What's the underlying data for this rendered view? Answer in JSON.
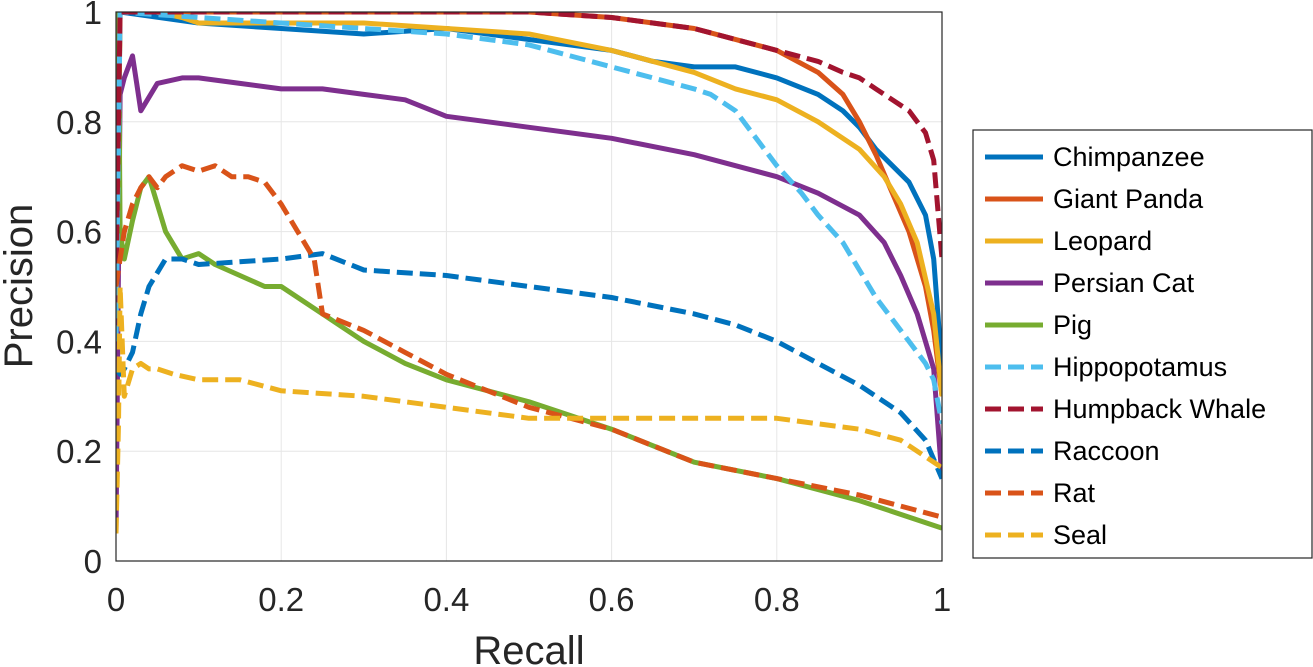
{
  "chart_data": {
    "type": "line",
    "title": "",
    "xlabel": "Recall",
    "ylabel": "Precision",
    "xlim": [
      0,
      1
    ],
    "ylim": [
      0,
      1
    ],
    "xticks": [
      "0",
      "0.2",
      "0.4",
      "0.6",
      "0.8",
      "1"
    ],
    "yticks": [
      "0",
      "0.2",
      "0.4",
      "0.6",
      "0.8",
      "1"
    ],
    "xtick_values": [
      0,
      0.2,
      0.4,
      0.6,
      0.8,
      1
    ],
    "ytick_values": [
      0,
      0.2,
      0.4,
      0.6,
      0.8,
      1
    ],
    "grid": true,
    "legend_position": "outside-right",
    "series": [
      {
        "name": "Chimpanzee",
        "color": "#0072BD",
        "dash": "solid",
        "x": [
          0,
          0.005,
          0.1,
          0.2,
          0.3,
          0.4,
          0.5,
          0.6,
          0.65,
          0.7,
          0.75,
          0.8,
          0.85,
          0.88,
          0.9,
          0.92,
          0.94,
          0.96,
          0.98,
          0.99,
          1.0
        ],
        "y": [
          0.45,
          1.0,
          0.98,
          0.97,
          0.96,
          0.97,
          0.95,
          0.93,
          0.91,
          0.9,
          0.9,
          0.88,
          0.85,
          0.82,
          0.79,
          0.75,
          0.72,
          0.69,
          0.63,
          0.55,
          0.35
        ]
      },
      {
        "name": "Giant Panda",
        "color": "#D95319",
        "dash": "solid",
        "x": [
          0,
          0.005,
          0.1,
          0.3,
          0.5,
          0.6,
          0.7,
          0.8,
          0.85,
          0.88,
          0.9,
          0.92,
          0.94,
          0.96,
          0.98,
          0.99,
          1.0
        ],
        "y": [
          0.45,
          1.0,
          1.0,
          1.0,
          1.0,
          0.99,
          0.97,
          0.93,
          0.89,
          0.85,
          0.8,
          0.74,
          0.67,
          0.6,
          0.5,
          0.42,
          0.3
        ]
      },
      {
        "name": "Leopard",
        "color": "#EDB120",
        "dash": "solid",
        "x": [
          0,
          0.005,
          0.05,
          0.08,
          0.1,
          0.2,
          0.3,
          0.4,
          0.5,
          0.6,
          0.7,
          0.75,
          0.8,
          0.85,
          0.9,
          0.93,
          0.95,
          0.97,
          0.99,
          1.0
        ],
        "y": [
          0.4,
          1.0,
          1.0,
          0.99,
          0.98,
          0.98,
          0.98,
          0.97,
          0.96,
          0.93,
          0.89,
          0.86,
          0.84,
          0.8,
          0.75,
          0.7,
          0.65,
          0.58,
          0.45,
          0.3
        ]
      },
      {
        "name": "Persian Cat",
        "color": "#7E2F8E",
        "dash": "solid",
        "x": [
          0,
          0.005,
          0.01,
          0.015,
          0.02,
          0.025,
          0.03,
          0.05,
          0.08,
          0.1,
          0.15,
          0.2,
          0.25,
          0.3,
          0.35,
          0.4,
          0.5,
          0.6,
          0.7,
          0.75,
          0.8,
          0.85,
          0.9,
          0.93,
          0.95,
          0.97,
          0.99,
          1.0
        ],
        "y": [
          0.05,
          0.85,
          0.88,
          0.9,
          0.92,
          0.87,
          0.82,
          0.87,
          0.88,
          0.88,
          0.87,
          0.86,
          0.86,
          0.85,
          0.84,
          0.81,
          0.79,
          0.77,
          0.74,
          0.72,
          0.7,
          0.67,
          0.63,
          0.58,
          0.52,
          0.45,
          0.35,
          0.15
        ]
      },
      {
        "name": "Pig",
        "color": "#77AC30",
        "dash": "solid",
        "x": [
          0,
          0.003,
          0.005,
          0.01,
          0.02,
          0.03,
          0.04,
          0.05,
          0.06,
          0.08,
          0.1,
          0.12,
          0.15,
          0.18,
          0.2,
          0.25,
          0.3,
          0.35,
          0.4,
          0.5,
          0.6,
          0.7,
          0.8,
          0.9,
          1.0
        ],
        "y": [
          0.5,
          1.0,
          0.6,
          0.55,
          0.62,
          0.68,
          0.7,
          0.65,
          0.6,
          0.55,
          0.56,
          0.54,
          0.52,
          0.5,
          0.5,
          0.45,
          0.4,
          0.36,
          0.33,
          0.29,
          0.24,
          0.18,
          0.15,
          0.11,
          0.06
        ]
      },
      {
        "name": "Hippopotamus",
        "color": "#4DBEEE",
        "dash": "dashed",
        "x": [
          0,
          0.005,
          0.1,
          0.2,
          0.3,
          0.4,
          0.5,
          0.6,
          0.65,
          0.7,
          0.72,
          0.75,
          0.78,
          0.8,
          0.83,
          0.85,
          0.88,
          0.9,
          0.92,
          0.94,
          0.96,
          0.98,
          0.99,
          1.0
        ],
        "y": [
          0.4,
          1.0,
          0.99,
          0.98,
          0.97,
          0.96,
          0.94,
          0.9,
          0.88,
          0.86,
          0.85,
          0.82,
          0.76,
          0.72,
          0.67,
          0.63,
          0.58,
          0.53,
          0.48,
          0.44,
          0.4,
          0.36,
          0.33,
          0.25
        ]
      },
      {
        "name": "Humpback Whale",
        "color": "#A2142F",
        "dash": "dashed",
        "x": [
          0,
          0.005,
          0.1,
          0.2,
          0.3,
          0.4,
          0.5,
          0.6,
          0.7,
          0.8,
          0.85,
          0.88,
          0.9,
          0.92,
          0.94,
          0.96,
          0.98,
          0.99,
          1.0
        ],
        "y": [
          0.5,
          1.0,
          1.0,
          1.0,
          1.0,
          1.0,
          1.0,
          0.99,
          0.97,
          0.93,
          0.91,
          0.89,
          0.88,
          0.86,
          0.84,
          0.82,
          0.78,
          0.73,
          0.55
        ]
      },
      {
        "name": "Raccoon",
        "color": "#0072BD",
        "dash": "dashed",
        "x": [
          0,
          0.005,
          0.01,
          0.02,
          0.03,
          0.04,
          0.06,
          0.08,
          0.1,
          0.2,
          0.25,
          0.3,
          0.4,
          0.5,
          0.6,
          0.7,
          0.75,
          0.8,
          0.85,
          0.9,
          0.95,
          0.98,
          1.0
        ],
        "y": [
          0.35,
          0.34,
          0.35,
          0.38,
          0.45,
          0.5,
          0.55,
          0.55,
          0.54,
          0.55,
          0.56,
          0.53,
          0.52,
          0.5,
          0.48,
          0.45,
          0.43,
          0.4,
          0.36,
          0.32,
          0.27,
          0.22,
          0.15
        ]
      },
      {
        "name": "Rat",
        "color": "#D95319",
        "dash": "dashed",
        "x": [
          0,
          0.005,
          0.01,
          0.02,
          0.03,
          0.04,
          0.05,
          0.06,
          0.08,
          0.1,
          0.12,
          0.14,
          0.16,
          0.18,
          0.2,
          0.22,
          0.24,
          0.25,
          0.3,
          0.35,
          0.4,
          0.5,
          0.6,
          0.7,
          0.8,
          0.9,
          1.0
        ],
        "y": [
          0.5,
          0.55,
          0.6,
          0.65,
          0.68,
          0.7,
          0.68,
          0.7,
          0.72,
          0.71,
          0.72,
          0.7,
          0.7,
          0.69,
          0.65,
          0.6,
          0.55,
          0.45,
          0.42,
          0.38,
          0.34,
          0.28,
          0.24,
          0.18,
          0.15,
          0.12,
          0.08
        ]
      },
      {
        "name": "Seal",
        "color": "#EDB120",
        "dash": "dashed",
        "x": [
          0,
          0.003,
          0.005,
          0.01,
          0.02,
          0.03,
          0.04,
          0.05,
          0.07,
          0.1,
          0.15,
          0.2,
          0.3,
          0.4,
          0.5,
          0.6,
          0.7,
          0.8,
          0.85,
          0.9,
          0.95,
          0.98,
          1.0
        ],
        "y": [
          0.05,
          0.25,
          0.5,
          0.3,
          0.35,
          0.36,
          0.35,
          0.35,
          0.34,
          0.33,
          0.33,
          0.31,
          0.3,
          0.28,
          0.26,
          0.26,
          0.26,
          0.26,
          0.25,
          0.24,
          0.22,
          0.19,
          0.17
        ]
      }
    ]
  }
}
